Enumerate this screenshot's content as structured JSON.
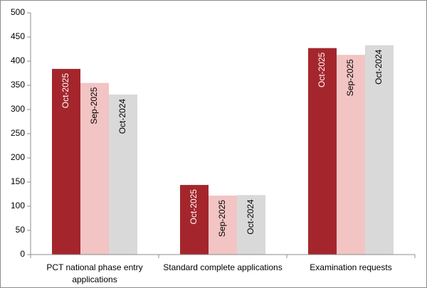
{
  "chart_data": {
    "type": "bar",
    "categories": [
      "PCT national phase entry applications",
      "Standard complete applications",
      "Examination requests"
    ],
    "series": [
      {
        "name": "Oct-2025",
        "color": "#a4262c",
        "values": [
          384,
          144,
          427
        ]
      },
      {
        "name": "Sep-2025",
        "color": "#f2c4c4",
        "values": [
          355,
          122,
          413
        ]
      },
      {
        "name": "Oct-2024",
        "color": "#d9d9d9",
        "values": [
          331,
          123,
          433
        ]
      }
    ],
    "ylim": [
      0,
      500
    ],
    "yticks": [
      0,
      50,
      100,
      150,
      200,
      250,
      300,
      350,
      400,
      450,
      500
    ],
    "grid": false
  }
}
